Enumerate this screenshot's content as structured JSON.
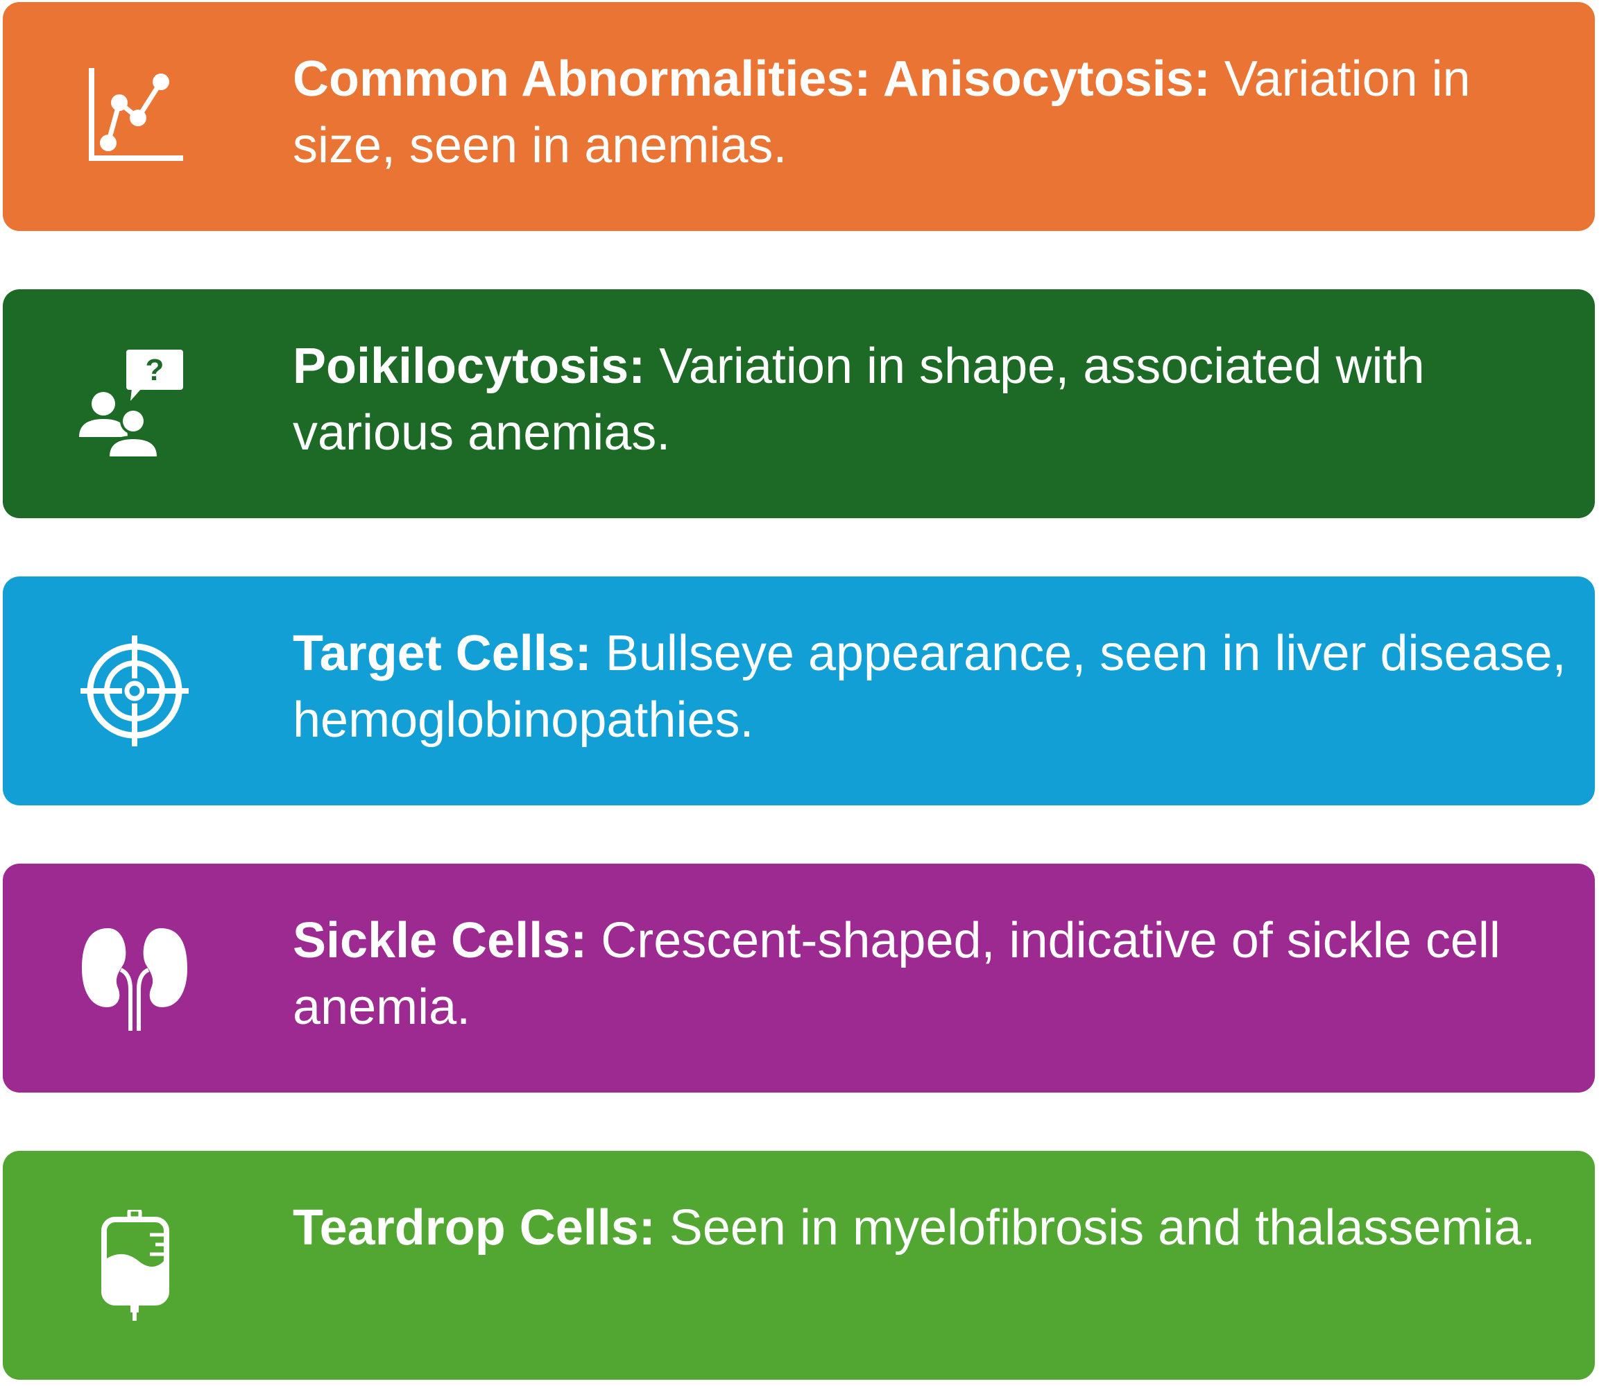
{
  "cards": [
    {
      "term": "Common Abnormalities: Anisocytosis:",
      "description": "Variation in size, seen in anemias.",
      "icon": "line-chart-icon",
      "color": "#E97434"
    },
    {
      "term": "Poikilocytosis:",
      "description": "Variation in shape, associated with various anemias.",
      "icon": "people-question-icon",
      "color": "#1C6A25"
    },
    {
      "term": "Target Cells:",
      "description": "Bullseye appearance, seen in liver disease, hemoglobinopathies.",
      "icon": "target-icon",
      "color": "#129FD6"
    },
    {
      "term": "Sickle Cells:",
      "description": "Crescent-shaped, indicative of sickle cell anemia.",
      "icon": "kidneys-icon",
      "color": "#9C2A90"
    },
    {
      "term": "Teardrop Cells:",
      "description": "Seen in myelofibrosis and thalassemia.",
      "icon": "iv-bag-icon",
      "color": "#52A733"
    }
  ]
}
